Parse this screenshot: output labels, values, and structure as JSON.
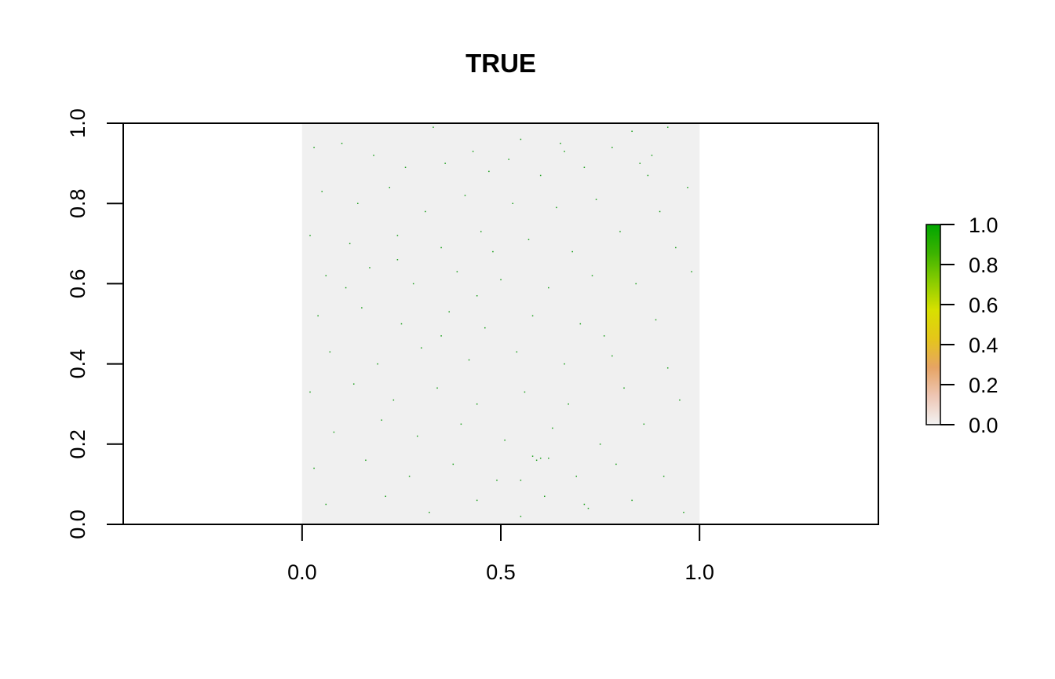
{
  "chart_data": {
    "type": "heatmap",
    "title": "TRUE",
    "xlabel": "",
    "ylabel": "",
    "xlim": [
      -0.45,
      1.45
    ],
    "ylim": [
      0,
      1
    ],
    "x_ticks": [
      "0.0",
      "0.5",
      "1.0"
    ],
    "y_ticks": [
      "0.0",
      "0.2",
      "0.4",
      "0.6",
      "0.8",
      "1.0"
    ],
    "raster_extent": {
      "x": [
        0,
        1
      ],
      "y": [
        0,
        1
      ]
    },
    "raster_description_value": 0.0,
    "raster_background_color": "#f0f0f0",
    "cell_color_true": "#1a9e1a",
    "colorbar": {
      "ticks": [
        "0.0",
        "0.2",
        "0.4",
        "0.6",
        "0.8",
        "1.0"
      ],
      "range": [
        0,
        1
      ],
      "colors": [
        "#f2f2f2",
        "#eec6b4",
        "#e6a464",
        "#e5c61a",
        "#d8e000",
        "#8acc00",
        "#3cb300",
        "#00a600"
      ]
    },
    "points": [
      [
        0.33,
        0.99
      ],
      [
        0.55,
        0.96
      ],
      [
        0.83,
        0.98
      ],
      [
        0.92,
        0.99
      ],
      [
        0.1,
        0.95
      ],
      [
        0.43,
        0.93
      ],
      [
        0.52,
        0.91
      ],
      [
        0.65,
        0.95
      ],
      [
        0.78,
        0.94
      ],
      [
        0.88,
        0.92
      ],
      [
        0.03,
        0.94
      ],
      [
        0.18,
        0.92
      ],
      [
        0.26,
        0.89
      ],
      [
        0.36,
        0.9
      ],
      [
        0.47,
        0.88
      ],
      [
        0.6,
        0.87
      ],
      [
        0.71,
        0.89
      ],
      [
        0.85,
        0.9
      ],
      [
        0.97,
        0.84
      ],
      [
        0.05,
        0.83
      ],
      [
        0.14,
        0.8
      ],
      [
        0.22,
        0.84
      ],
      [
        0.31,
        0.78
      ],
      [
        0.41,
        0.82
      ],
      [
        0.53,
        0.8
      ],
      [
        0.64,
        0.79
      ],
      [
        0.74,
        0.81
      ],
      [
        0.9,
        0.78
      ],
      [
        0.02,
        0.72
      ],
      [
        0.12,
        0.7
      ],
      [
        0.24,
        0.72
      ],
      [
        0.35,
        0.69
      ],
      [
        0.45,
        0.73
      ],
      [
        0.57,
        0.71
      ],
      [
        0.68,
        0.68
      ],
      [
        0.8,
        0.73
      ],
      [
        0.94,
        0.69
      ],
      [
        0.06,
        0.62
      ],
      [
        0.17,
        0.64
      ],
      [
        0.28,
        0.6
      ],
      [
        0.39,
        0.63
      ],
      [
        0.5,
        0.61
      ],
      [
        0.62,
        0.59
      ],
      [
        0.73,
        0.62
      ],
      [
        0.84,
        0.6
      ],
      [
        0.98,
        0.63
      ],
      [
        0.04,
        0.52
      ],
      [
        0.15,
        0.54
      ],
      [
        0.25,
        0.5
      ],
      [
        0.37,
        0.53
      ],
      [
        0.46,
        0.49
      ],
      [
        0.58,
        0.52
      ],
      [
        0.7,
        0.5
      ],
      [
        0.76,
        0.47
      ],
      [
        0.89,
        0.51
      ],
      [
        0.07,
        0.43
      ],
      [
        0.19,
        0.4
      ],
      [
        0.3,
        0.44
      ],
      [
        0.42,
        0.41
      ],
      [
        0.54,
        0.43
      ],
      [
        0.66,
        0.4
      ],
      [
        0.78,
        0.42
      ],
      [
        0.92,
        0.39
      ],
      [
        0.02,
        0.33
      ],
      [
        0.13,
        0.35
      ],
      [
        0.23,
        0.31
      ],
      [
        0.34,
        0.34
      ],
      [
        0.44,
        0.3
      ],
      [
        0.56,
        0.33
      ],
      [
        0.67,
        0.3
      ],
      [
        0.81,
        0.34
      ],
      [
        0.95,
        0.31
      ],
      [
        0.08,
        0.23
      ],
      [
        0.2,
        0.26
      ],
      [
        0.29,
        0.22
      ],
      [
        0.4,
        0.25
      ],
      [
        0.51,
        0.21
      ],
      [
        0.63,
        0.24
      ],
      [
        0.75,
        0.2
      ],
      [
        0.86,
        0.25
      ],
      [
        0.03,
        0.14
      ],
      [
        0.16,
        0.16
      ],
      [
        0.27,
        0.12
      ],
      [
        0.38,
        0.15
      ],
      [
        0.49,
        0.11
      ],
      [
        0.59,
        0.16
      ],
      [
        0.69,
        0.12
      ],
      [
        0.79,
        0.15
      ],
      [
        0.91,
        0.12
      ],
      [
        0.06,
        0.05
      ],
      [
        0.21,
        0.07
      ],
      [
        0.32,
        0.03
      ],
      [
        0.44,
        0.06
      ],
      [
        0.55,
        0.02
      ],
      [
        0.61,
        0.07
      ],
      [
        0.72,
        0.04
      ],
      [
        0.83,
        0.06
      ],
      [
        0.96,
        0.03
      ],
      [
        0.11,
        0.59
      ],
      [
        0.48,
        0.68
      ],
      [
        0.58,
        0.17
      ],
      [
        0.6,
        0.165
      ],
      [
        0.62,
        0.165
      ],
      [
        0.71,
        0.05
      ],
      [
        0.55,
        0.11
      ],
      [
        0.35,
        0.47
      ],
      [
        0.87,
        0.87
      ],
      [
        0.66,
        0.93
      ],
      [
        0.24,
        0.66
      ],
      [
        0.44,
        0.57
      ]
    ]
  }
}
